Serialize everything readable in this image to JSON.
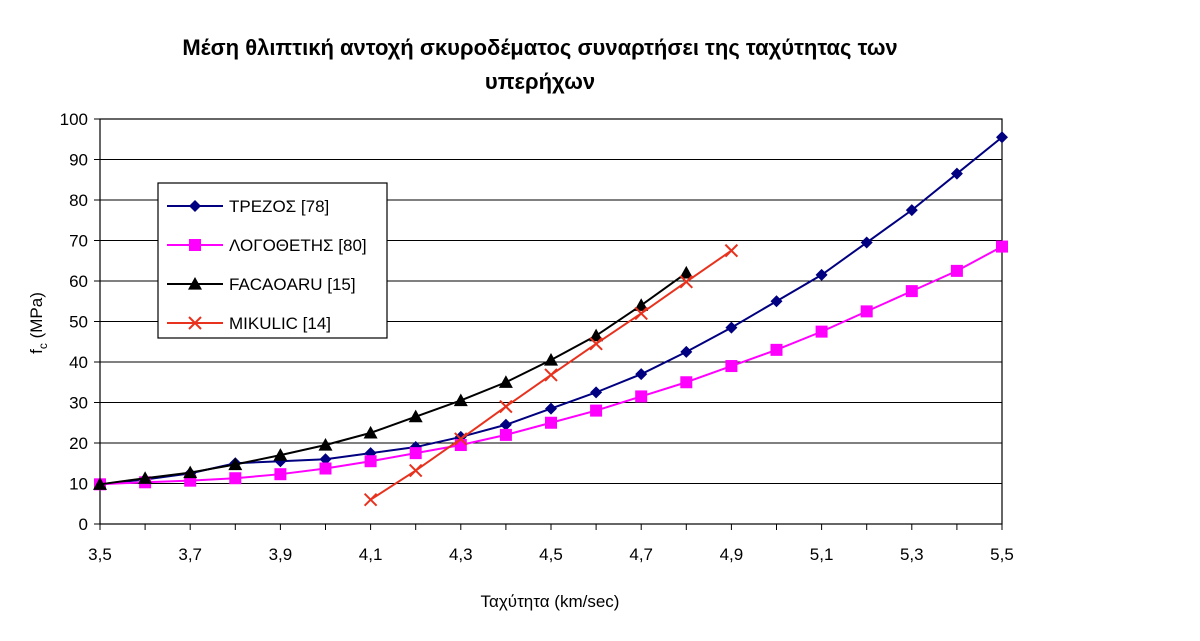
{
  "chart_data": {
    "type": "line",
    "title_line1": "Μέση θλιπτική αντοχή σκυροδέματος συναρτήσει της ταχύτητας των",
    "title_line2": "υπερήχων",
    "xlabel": "Ταχύτητα (km/sec)",
    "ylabel_main": "f",
    "ylabel_sub": "c",
    "ylabel_unit": "(MPa)",
    "xlim": [
      3.5,
      5.5
    ],
    "ylim": [
      0,
      100
    ],
    "xticks": [
      "3,5",
      "3,7",
      "3,9",
      "4,1",
      "4,3",
      "4,5",
      "4,7",
      "4,9",
      "5,1",
      "5,3",
      "5,5"
    ],
    "yticks": [
      "0",
      "10",
      "20",
      "30",
      "40",
      "50",
      "60",
      "70",
      "80",
      "90",
      "100"
    ],
    "grid": true,
    "legend_position": "top-left",
    "series": [
      {
        "name": "ΤΡΕΖΟΣ [78]",
        "color": "#000080",
        "marker": "diamond",
        "x": [
          3.5,
          3.6,
          3.7,
          3.8,
          3.9,
          4.0,
          4.1,
          4.2,
          4.3,
          4.4,
          4.5,
          4.6,
          4.7,
          4.8,
          4.9,
          5.0,
          5.1,
          5.2,
          5.3,
          5.4,
          5.5
        ],
        "y": [
          9.8,
          11.0,
          12.5,
          15.0,
          15.5,
          16.0,
          17.5,
          19.0,
          21.5,
          24.5,
          28.5,
          32.5,
          37.0,
          42.5,
          48.5,
          55.0,
          61.5,
          69.5,
          77.5,
          86.5,
          95.5
        ]
      },
      {
        "name": "ΛΟΓΟΘΕΤΗΣ [80]",
        "color": "#ff00ff",
        "marker": "square",
        "x": [
          3.5,
          3.6,
          3.7,
          3.8,
          3.9,
          4.0,
          4.1,
          4.2,
          4.3,
          4.4,
          4.5,
          4.6,
          4.7,
          4.8,
          4.9,
          5.0,
          5.1,
          5.2,
          5.3,
          5.4,
          5.5
        ],
        "y": [
          9.8,
          10.3,
          10.7,
          11.3,
          12.3,
          13.7,
          15.5,
          17.5,
          19.5,
          22.0,
          25.0,
          28.0,
          31.5,
          35.0,
          39.0,
          43.0,
          47.5,
          52.5,
          57.5,
          62.5,
          68.5
        ]
      },
      {
        "name": "FACAOARU [15]",
        "color": "#000000",
        "marker": "triangle",
        "x": [
          3.5,
          3.6,
          3.7,
          3.8,
          3.9,
          4.0,
          4.1,
          4.2,
          4.3,
          4.4,
          4.5,
          4.6,
          4.7,
          4.8
        ],
        "y": [
          9.8,
          11.3,
          12.7,
          14.7,
          17.0,
          19.5,
          22.5,
          26.5,
          30.5,
          35.0,
          40.5,
          46.5,
          54.0,
          62.0
        ]
      },
      {
        "name": "MIKULIC [14]",
        "color": "#e8321e",
        "marker": "x",
        "x": [
          4.1,
          4.2,
          4.3,
          4.4,
          4.5,
          4.6,
          4.7,
          4.8,
          4.9
        ],
        "y": [
          6.0,
          13.2,
          21.0,
          29.0,
          36.8,
          44.5,
          52.0,
          59.8,
          67.5
        ]
      }
    ]
  }
}
